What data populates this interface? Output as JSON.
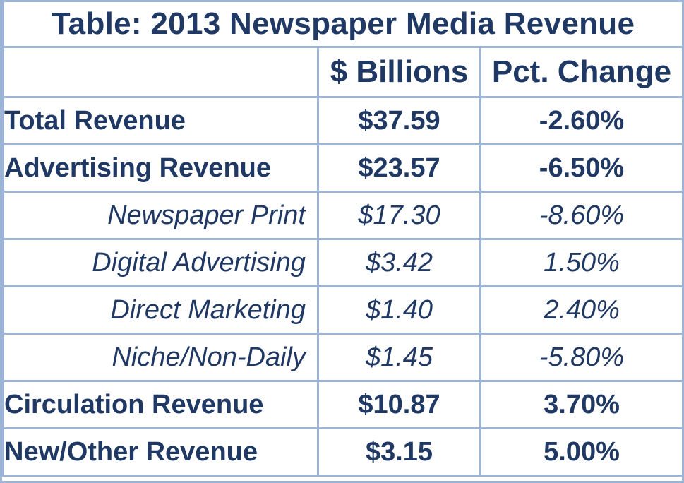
{
  "chart_data": {
    "type": "table",
    "title": "Table:  2013 Newspaper Media Revenue",
    "columns": [
      "",
      "$ Billions",
      "Pct. Change"
    ],
    "rows": [
      {
        "label": "Total Revenue",
        "billions": "$37.59",
        "pct_change": "-2.60%",
        "level": "total"
      },
      {
        "label": "Advertising Revenue",
        "billions": "$23.57",
        "pct_change": "-6.50%",
        "level": "major"
      },
      {
        "label": "Newspaper Print",
        "billions": "$17.30",
        "pct_change": "-8.60%",
        "level": "sub"
      },
      {
        "label": "Digital Advertising",
        "billions": "$3.42",
        "pct_change": "1.50%",
        "level": "sub"
      },
      {
        "label": "Direct Marketing",
        "billions": "$1.40",
        "pct_change": "2.40%",
        "level": "sub"
      },
      {
        "label": "Niche/Non-Daily",
        "billions": "$1.45",
        "pct_change": "-5.80%",
        "level": "sub"
      },
      {
        "label": "Circulation Revenue",
        "billions": "$10.87",
        "pct_change": "3.70%",
        "level": "major"
      },
      {
        "label": "New/Other Revenue",
        "billions": "$3.15",
        "pct_change": "5.00%",
        "level": "major"
      }
    ]
  },
  "colors": {
    "text": "#1f3864",
    "grid": "#9db4d6",
    "background": "#ffffff"
  }
}
